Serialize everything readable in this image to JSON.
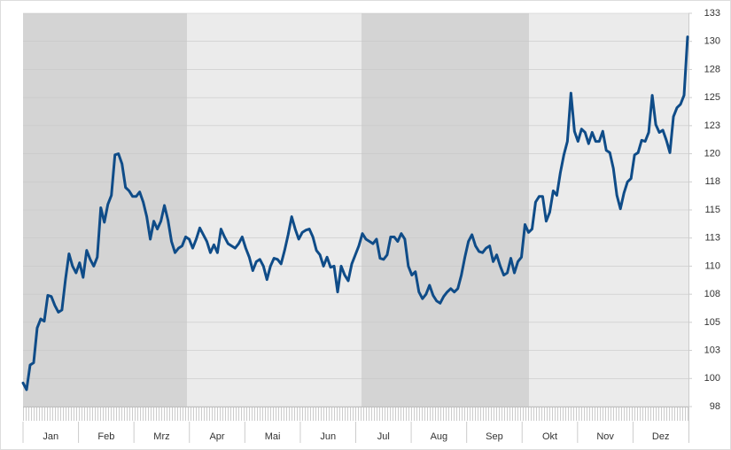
{
  "chart_data": {
    "type": "line",
    "xtick_labels": [
      "Jan",
      "Feb",
      "Mrz",
      "Apr",
      "Mai",
      "Jun",
      "Jul",
      "Aug",
      "Sep",
      "Okt",
      "Nov",
      "Dez"
    ],
    "series": [
      {
        "color": "#0f4c88",
        "values": [
          99.6,
          99.0,
          101.2,
          101.4,
          104.5,
          105.3,
          105.1,
          107.4,
          107.3,
          106.5,
          105.9,
          106.1,
          108.8,
          111.1,
          110.0,
          109.4,
          110.3,
          109.0,
          111.4,
          110.6,
          110.0,
          110.8,
          115.2,
          113.9,
          115.5,
          116.3,
          119.9,
          120.0,
          119.1,
          117.0,
          116.7,
          116.2,
          116.2,
          116.6,
          115.7,
          114.4,
          112.4,
          114.0,
          113.3,
          114.0,
          115.4,
          114.1,
          112.2,
          111.2,
          111.6,
          111.8,
          112.6,
          112.4,
          111.6,
          112.4,
          113.4,
          112.8,
          112.2,
          111.2,
          111.9,
          111.2,
          113.3,
          112.6,
          112.0,
          111.8,
          111.6,
          112.0,
          112.6,
          111.6,
          110.8,
          109.6,
          110.4,
          110.6,
          110.0,
          108.8,
          110.0,
          110.7,
          110.6,
          110.2,
          111.4,
          112.8,
          114.4,
          113.3,
          112.4,
          113.0,
          113.2,
          113.3,
          112.6,
          111.4,
          111.0,
          110.0,
          110.8,
          109.9,
          110.0,
          107.7,
          110.0,
          109.2,
          108.7,
          110.2,
          111.0,
          111.8,
          112.9,
          112.4,
          112.2,
          112.0,
          112.4,
          110.7,
          110.6,
          111.0,
          112.6,
          112.6,
          112.2,
          112.9,
          112.4,
          110.0,
          109.2,
          109.5,
          107.7,
          107.1,
          107.5,
          108.3,
          107.4,
          106.9,
          106.7,
          107.3,
          107.7,
          108.0,
          107.7,
          108.0,
          109.2,
          110.8,
          112.2,
          112.8,
          111.8,
          111.3,
          111.2,
          111.6,
          111.8,
          110.4,
          111.0,
          110.0,
          109.2,
          109.4,
          110.7,
          109.4,
          110.4,
          110.8,
          113.7,
          113.0,
          113.3,
          115.7,
          116.2,
          116.2,
          114.0,
          114.8,
          116.7,
          116.3,
          118.3,
          119.9,
          121.1,
          125.4,
          122.0,
          121.1,
          122.2,
          121.9,
          120.9,
          121.9,
          121.1,
          121.1,
          122.0,
          120.3,
          120.1,
          118.7,
          116.3,
          115.1,
          116.5,
          117.5,
          117.8,
          119.9,
          120.1,
          121.2,
          121.1,
          121.9,
          125.2,
          122.6,
          121.9,
          122.1,
          121.2,
          120.1,
          123.3,
          124.1,
          124.4,
          125.2,
          130.4
        ]
      }
    ],
    "ylim": [
      97.5,
      132.5
    ],
    "yticks": [
      {
        "value": 97.5,
        "label": "98"
      },
      100,
      {
        "value": 102.5,
        "label": "103"
      },
      105,
      {
        "value": 107.5,
        "label": "108"
      },
      110,
      {
        "value": 112.5,
        "label": "113"
      },
      115,
      {
        "value": 117.5,
        "label": "118"
      },
      120,
      {
        "value": 122.5,
        "label": "123"
      },
      125,
      {
        "value": 127.5,
        "label": "128"
      },
      130,
      {
        "value": 132.5,
        "label": "133"
      }
    ],
    "grid": true
  }
}
